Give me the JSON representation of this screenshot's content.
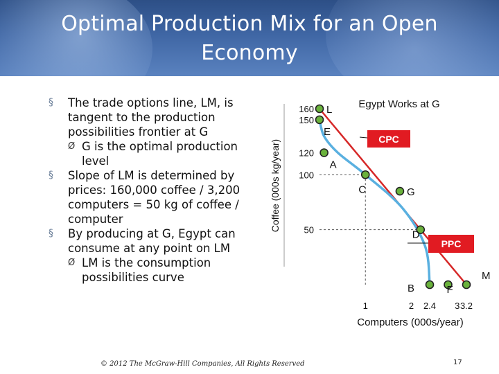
{
  "slide": {
    "title_line1": "Optimal Production Mix for an Open",
    "title_line2": "Economy",
    "bullets": [
      {
        "level": 1,
        "mark": "§",
        "text": "The trade options line, LM, is tangent to the production possibilities frontier at G"
      },
      {
        "level": 2,
        "mark": "Ø",
        "text": "G is the optimal production level"
      },
      {
        "level": 1,
        "mark": "§",
        "text": "Slope of LM is determined by prices: 160,000 coffee / 3,200 computers = 50 kg of coffee / computer"
      },
      {
        "level": 1,
        "mark": "§",
        "text": "By producing at G, Egypt can consume at any point on LM"
      },
      {
        "level": 2,
        "mark": "Ø",
        "text": "LM is the consumption possibilities curve"
      }
    ],
    "footer": "© 2012 The McGraw-Hill Companies, All Rights Reserved",
    "page_number": "17"
  },
  "colors": {
    "title_bar": "#3f66a4",
    "lm_line": "#d62828",
    "ppc_curve": "#5ab0e0",
    "callout_box": "#e11b22",
    "point_fill": "#6ab23c"
  },
  "chart_data": {
    "type": "line",
    "ylabel": "Coffee (000s kg/year)",
    "xlabel": "Computers (000s/year)",
    "y_ticks": [
      "160",
      "150",
      "120",
      "100",
      "50"
    ],
    "x_ticks": [
      "1",
      "2",
      "2.4",
      "3",
      "3.2"
    ],
    "xlim": [
      0,
      3.2
    ],
    "ylim": [
      0,
      160
    ],
    "series": [
      {
        "name": "LM",
        "x": [
          0,
          3.2
        ],
        "y": [
          160,
          0
        ]
      },
      {
        "name": "PPC",
        "x": [
          0,
          0.1,
          0.4,
          1,
          1.8,
          2.3,
          2.4
        ],
        "y": [
          150,
          135,
          120,
          100,
          70,
          35,
          0
        ]
      }
    ],
    "points": [
      {
        "label": "L",
        "x": 0,
        "y": 160
      },
      {
        "label": "E",
        "x": 0,
        "y": 150
      },
      {
        "label": "A",
        "x": 0.1,
        "y": 120
      },
      {
        "label": "C",
        "x": 1,
        "y": 100
      },
      {
        "label": "G",
        "x": 1.75,
        "y": 85
      },
      {
        "label": "D",
        "x": 2.2,
        "y": 50
      },
      {
        "label": "B",
        "x": 2.4,
        "y": 0
      },
      {
        "label": "F",
        "x": 2.8,
        "y": 0
      },
      {
        "label": "M",
        "x": 3.2,
        "y": 0
      }
    ],
    "guides": [
      {
        "from": [
          0,
          100
        ],
        "to": [
          1,
          100
        ]
      },
      {
        "from": [
          1,
          100
        ],
        "to": [
          1,
          0
        ]
      },
      {
        "from": [
          0,
          50
        ],
        "to": [
          2.2,
          50
        ]
      }
    ],
    "annotations": {
      "top": "Egypt Works at G",
      "lm_box": "CPC",
      "ppc_box": "PPC"
    }
  }
}
